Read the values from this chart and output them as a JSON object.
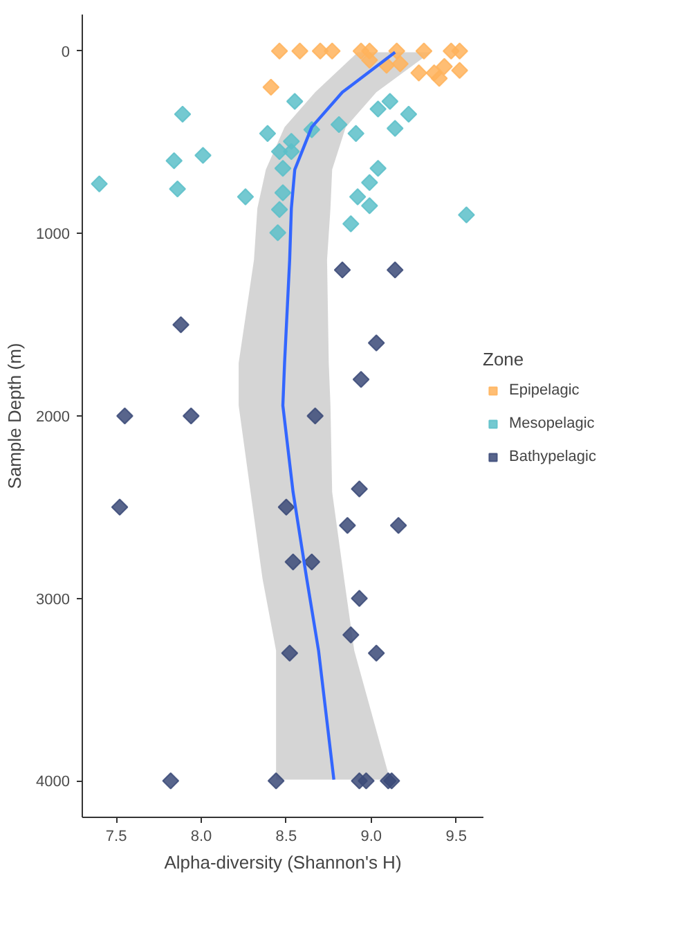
{
  "chart_data": {
    "type": "scatter",
    "orientation": "horizontal",
    "xlabel": "Alpha-diversity (Shannon's H)",
    "ylabel": "Sample Depth (m)",
    "legend_title": "Zone",
    "legend": "right",
    "grid": false,
    "marker": "diamond",
    "xlim": [
      7.3,
      9.66
    ],
    "xticks": [
      {
        "value": 7.5,
        "label": "7.5"
      },
      {
        "value": 8.0,
        "label": "8.0"
      },
      {
        "value": 8.5,
        "label": "8.5"
      },
      {
        "value": 9.0,
        "label": "9.0"
      },
      {
        "value": 9.5,
        "label": "9.5"
      }
    ],
    "ylim": [
      4200,
      -200
    ],
    "yticks": [
      0,
      1000,
      2000,
      3000,
      4000
    ],
    "series": [
      {
        "name": "Epipelagic",
        "color": "#ffb35c",
        "x": [
          0,
          0,
          0,
          0,
          0,
          0,
          0,
          0,
          0,
          0,
          50,
          78,
          70,
          120,
          120,
          150,
          85,
          106,
          198
        ],
        "values": [
          8.46,
          8.58,
          8.7,
          8.77,
          8.94,
          8.99,
          9.15,
          9.31,
          9.47,
          9.52,
          8.99,
          9.09,
          9.17,
          9.28,
          9.37,
          9.4,
          9.43,
          9.52,
          8.41
        ]
      },
      {
        "name": "Mesopelagic",
        "color": "#5cc0c9",
        "x": [
          276,
          346,
          276,
          318,
          346,
          424,
          452,
          431,
          403,
          452,
          495,
          551,
          551,
          572,
          601,
          643,
          643,
          728,
          721,
          756,
          777,
          799,
          799,
          869,
          848,
          898,
          947,
          996
        ],
        "values": [
          8.55,
          7.89,
          9.11,
          9.04,
          9.22,
          9.14,
          8.39,
          8.65,
          8.81,
          8.91,
          8.53,
          8.46,
          8.53,
          8.01,
          7.84,
          8.48,
          9.04,
          7.4,
          8.99,
          7.86,
          8.48,
          8.26,
          8.92,
          8.46,
          8.99,
          9.56,
          8.88,
          8.45
        ]
      },
      {
        "name": "Bathypelagic",
        "color": "#3b4a78",
        "x": [
          1200,
          1200,
          1500,
          1600,
          1800,
          2000,
          2000,
          2000,
          2400,
          2500,
          2500,
          2600,
          2600,
          2800,
          2800,
          3000,
          3200,
          3300,
          3300,
          4000,
          4000,
          4000,
          4000,
          4000,
          4000
        ],
        "values": [
          8.83,
          9.14,
          7.88,
          9.03,
          8.94,
          7.55,
          7.94,
          8.67,
          8.93,
          7.52,
          8.5,
          8.86,
          9.16,
          8.54,
          8.65,
          8.93,
          8.88,
          9.03,
          8.52,
          7.82,
          8.44,
          8.93,
          8.97,
          9.1,
          9.12
        ]
      },
      {
        "type": "line",
        "marker": "none",
        "color": "#3366ff",
        "x": [
          7,
          226,
          417,
          650,
          862,
          1145,
          1710,
          1943,
          2417,
          2890,
          3286,
          3993
        ],
        "values": [
          9.14,
          8.83,
          8.65,
          8.55,
          8.53,
          8.52,
          8.49,
          8.48,
          8.54,
          8.62,
          8.69,
          8.78
        ],
        "lower": [
          8.92,
          8.67,
          8.49,
          8.38,
          8.33,
          8.31,
          8.22,
          8.22,
          8.29,
          8.36,
          8.44,
          8.44
        ],
        "upper": [
          9.35,
          9.03,
          8.85,
          8.77,
          8.76,
          8.74,
          8.75,
          8.76,
          8.77,
          8.84,
          8.9,
          9.11
        ]
      }
    ]
  }
}
